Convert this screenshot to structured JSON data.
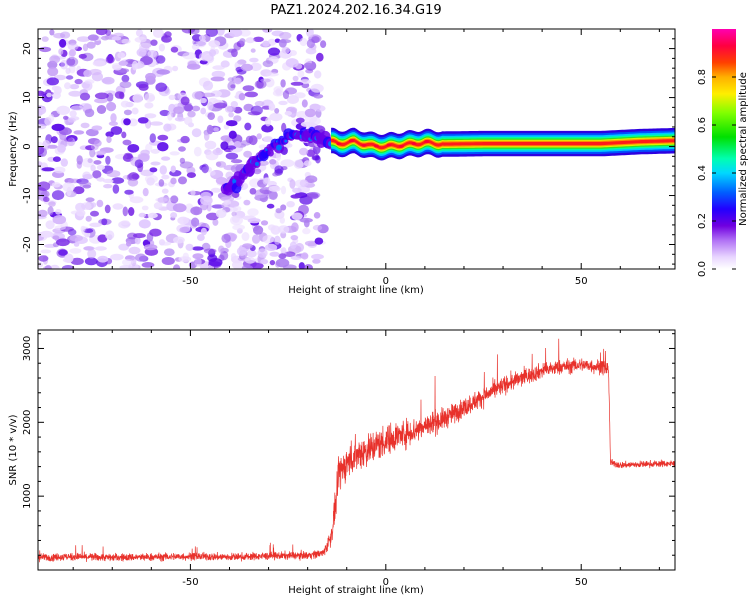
{
  "figure": {
    "title": "PAZ1.2024.202.16.34.G19"
  },
  "chart_data": [
    {
      "type": "heatmap",
      "id": "spectrogram",
      "xlabel": "Height of straight line (km)",
      "ylabel": "Frequency (Hz)",
      "xlim": [
        -89,
        74
      ],
      "ylim": [
        -25,
        24
      ],
      "xticks": [
        -50,
        0,
        50
      ],
      "yticks": [
        -20,
        -10,
        0,
        10,
        20
      ],
      "grid": false,
      "noise_region_x": [
        -89,
        -16
      ],
      "noise_band_x": [
        -89,
        -14
      ],
      "tone": {
        "description_points_x": [
          -40,
          -37,
          -34,
          -31,
          -28,
          -25,
          -22,
          -19,
          -16,
          -12,
          -8,
          -4,
          0,
          5,
          10,
          15,
          25,
          40,
          55,
          65,
          74
        ],
        "description_points_y": [
          -8.5,
          -6.5,
          -3.5,
          -1.5,
          0.5,
          2.0,
          2.5,
          2.2,
          1.5,
          0.6,
          1.0,
          0.2,
          0.0,
          0.4,
          0.8,
          0.5,
          0.6,
          0.6,
          0.6,
          1.0,
          1.2
        ]
      },
      "colorbar": {
        "label": "Normalized spectral amplitude",
        "range": [
          0,
          1
        ],
        "ticks": [
          0.0,
          0.2,
          0.4,
          0.6,
          0.8
        ],
        "tick_labels": [
          "0.0",
          "0.2",
          "0.4",
          "0.6",
          "0.8"
        ],
        "colormap": "gist_ncar_r"
      }
    },
    {
      "type": "line",
      "id": "snr",
      "xlabel": "Height of straight line (km)",
      "ylabel": "SNR (10 * v/v)",
      "xlim": [
        -89,
        74
      ],
      "ylim": [
        0,
        3250
      ],
      "xticks": [
        -50,
        0,
        50
      ],
      "yticks": [
        1000,
        2000,
        3000
      ],
      "grid": false,
      "color": "#e8312b",
      "series": [
        {
          "x": [
            -89,
            -80,
            -70,
            -60,
            -50,
            -40,
            -30,
            -20,
            -16,
            -14,
            -13,
            -12,
            -10,
            -8,
            -6,
            -4,
            -2,
            0,
            2,
            5,
            8,
            10,
            15,
            20,
            25,
            30,
            35,
            40,
            45,
            50,
            55,
            57,
            57.5,
            60,
            65,
            70,
            74
          ],
          "y": [
            170,
            180,
            170,
            175,
            185,
            175,
            190,
            200,
            230,
            450,
            800,
            1300,
            1450,
            1550,
            1600,
            1650,
            1700,
            1750,
            1800,
            1850,
            1900,
            1950,
            2050,
            2200,
            2350,
            2500,
            2600,
            2700,
            2750,
            2780,
            2750,
            2720,
            1450,
            1420,
            1430,
            1440,
            1440
          ],
          "noise_amplitude": [
            80,
            80,
            80,
            80,
            80,
            80,
            80,
            80,
            90,
            200,
            300,
            350,
            350,
            350,
            350,
            350,
            330,
            320,
            300,
            280,
            270,
            260,
            220,
            200,
            190,
            180,
            170,
            160,
            150,
            140,
            150,
            150,
            70,
            70,
            70,
            70,
            70
          ]
        }
      ]
    }
  ]
}
